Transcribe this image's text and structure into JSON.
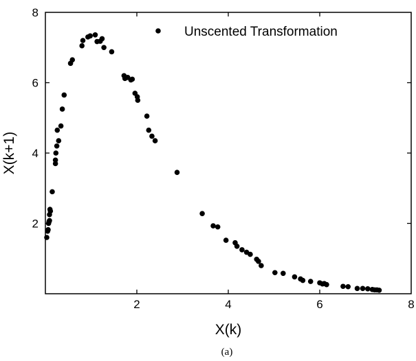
{
  "chart_data": {
    "type": "scatter",
    "title": "",
    "xlabel": "X(k)",
    "ylabel": "X(k+1)",
    "xlim": [
      0,
      8
    ],
    "ylim": [
      0,
      8
    ],
    "xticks": [
      2,
      4,
      6,
      8
    ],
    "yticks": [
      2,
      4,
      6,
      8
    ],
    "x_tick_labels": [
      "2",
      "4",
      "6",
      "8"
    ],
    "y_tick_labels": [
      "2",
      "4",
      "6",
      "8"
    ],
    "grid": false,
    "legend_position": "top-right",
    "caption": "(a)",
    "marker_color": "#000000",
    "series": [
      {
        "name": "Unscented Transformation",
        "points": [
          [
            0.03,
            1.6
          ],
          [
            0.05,
            1.78
          ],
          [
            0.06,
            1.82
          ],
          [
            0.07,
            2.0
          ],
          [
            0.08,
            2.05
          ],
          [
            0.09,
            2.08
          ],
          [
            0.09,
            2.25
          ],
          [
            0.1,
            2.4
          ],
          [
            0.11,
            2.35
          ],
          [
            0.15,
            2.9
          ],
          [
            0.22,
            3.7
          ],
          [
            0.22,
            3.8
          ],
          [
            0.23,
            4.0
          ],
          [
            0.25,
            4.2
          ],
          [
            0.26,
            4.65
          ],
          [
            0.29,
            4.35
          ],
          [
            0.34,
            4.77
          ],
          [
            0.37,
            5.25
          ],
          [
            0.41,
            5.65
          ],
          [
            0.55,
            6.55
          ],
          [
            0.59,
            6.65
          ],
          [
            0.8,
            7.05
          ],
          [
            0.82,
            7.2
          ],
          [
            0.93,
            7.3
          ],
          [
            0.98,
            7.33
          ],
          [
            1.09,
            7.36
          ],
          [
            1.13,
            7.17
          ],
          [
            1.2,
            7.18
          ],
          [
            1.24,
            7.25
          ],
          [
            1.28,
            7.0
          ],
          [
            1.45,
            6.88
          ],
          [
            1.72,
            6.2
          ],
          [
            1.74,
            6.12
          ],
          [
            1.8,
            6.15
          ],
          [
            1.87,
            6.08
          ],
          [
            1.9,
            6.1
          ],
          [
            1.96,
            5.7
          ],
          [
            2.01,
            5.6
          ],
          [
            2.02,
            5.5
          ],
          [
            2.22,
            5.05
          ],
          [
            2.26,
            4.65
          ],
          [
            2.33,
            4.48
          ],
          [
            2.4,
            4.35
          ],
          [
            2.88,
            3.45
          ],
          [
            3.43,
            2.28
          ],
          [
            3.67,
            1.93
          ],
          [
            3.77,
            1.9
          ],
          [
            3.95,
            1.52
          ],
          [
            4.15,
            1.45
          ],
          [
            4.19,
            1.35
          ],
          [
            4.3,
            1.25
          ],
          [
            4.4,
            1.18
          ],
          [
            4.48,
            1.12
          ],
          [
            4.62,
            0.98
          ],
          [
            4.66,
            0.92
          ],
          [
            4.72,
            0.8
          ],
          [
            5.02,
            0.6
          ],
          [
            5.2,
            0.58
          ],
          [
            5.45,
            0.48
          ],
          [
            5.58,
            0.42
          ],
          [
            5.63,
            0.38
          ],
          [
            5.8,
            0.35
          ],
          [
            6.0,
            0.31
          ],
          [
            6.06,
            0.28
          ],
          [
            6.1,
            0.29
          ],
          [
            6.15,
            0.26
          ],
          [
            6.51,
            0.21
          ],
          [
            6.62,
            0.2
          ],
          [
            6.82,
            0.15
          ],
          [
            6.94,
            0.15
          ],
          [
            7.05,
            0.14
          ],
          [
            7.15,
            0.12
          ],
          [
            7.2,
            0.11
          ],
          [
            7.25,
            0.11
          ],
          [
            7.3,
            0.1
          ]
        ]
      }
    ]
  }
}
